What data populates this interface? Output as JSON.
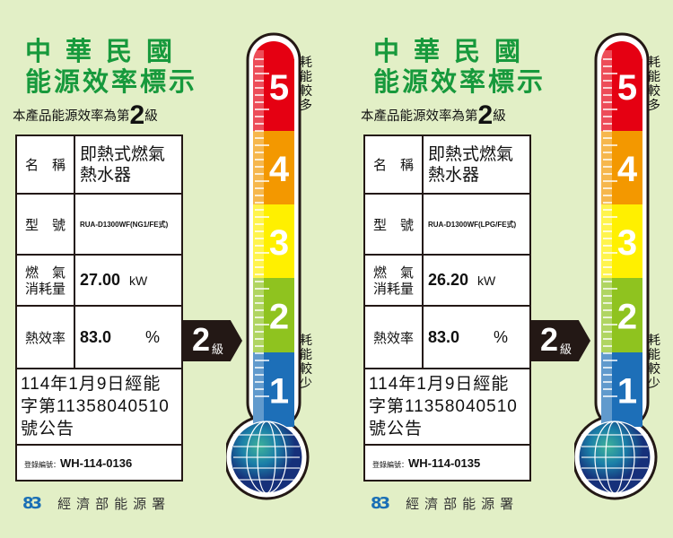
{
  "labels": [
    {
      "title_line1": "中華民國",
      "title_line2": "能源效率標示",
      "grade_prefix": "本產品能源效率為第",
      "grade": "2",
      "grade_suffix": "級",
      "name_label": "名　稱",
      "name_value": "即熱式燃氣熱水器",
      "model_label": "型　號",
      "model_value": "RUA-D1300WF(NG1/FE式)",
      "gas_label": "燃　氣消耗量",
      "gas_value": "27.00",
      "gas_unit": "kW",
      "eff_label": "熱效率",
      "eff_value": "83.0",
      "eff_unit": "%",
      "notice": "114年1月9日經能字第11358040510號公告",
      "reg_label": "登錄編號：",
      "reg_value": "WH-114-0136",
      "arrow_grade": "2",
      "arrow_suffix": "級",
      "more": "耗能較多",
      "less": "耗能較少",
      "org": "經濟部能源署",
      "logo": "83"
    },
    {
      "title_line1": "中華民國",
      "title_line2": "能源效率標示",
      "grade_prefix": "本產品能源效率為第",
      "grade": "2",
      "grade_suffix": "級",
      "name_label": "名　稱",
      "name_value": "即熱式燃氣熱水器",
      "model_label": "型　號",
      "model_value": "RUA-D1300WF(LPG/FE式)",
      "gas_label": "燃　氣消耗量",
      "gas_value": "26.20",
      "gas_unit": "kW",
      "eff_label": "熱效率",
      "eff_value": "83.0",
      "eff_unit": "%",
      "notice": "114年1月9日經能字第11358040510號公告",
      "reg_label": "登錄編號：",
      "reg_value": "WH-114-0135",
      "arrow_grade": "2",
      "arrow_suffix": "級",
      "more": "耗能較多",
      "less": "耗能較少",
      "org": "經濟部能源署",
      "logo": "83"
    }
  ],
  "scale": [
    {
      "grade": "5",
      "color": "#e50012"
    },
    {
      "grade": "4",
      "color": "#f39800"
    },
    {
      "grade": "3",
      "color": "#fff000"
    },
    {
      "grade": "2",
      "color": "#8fc31f"
    },
    {
      "grade": "1",
      "color": "#1d6fb8"
    }
  ],
  "colors": {
    "background": "#e2efc6",
    "title": "#17993c",
    "arrow": "#231815"
  }
}
